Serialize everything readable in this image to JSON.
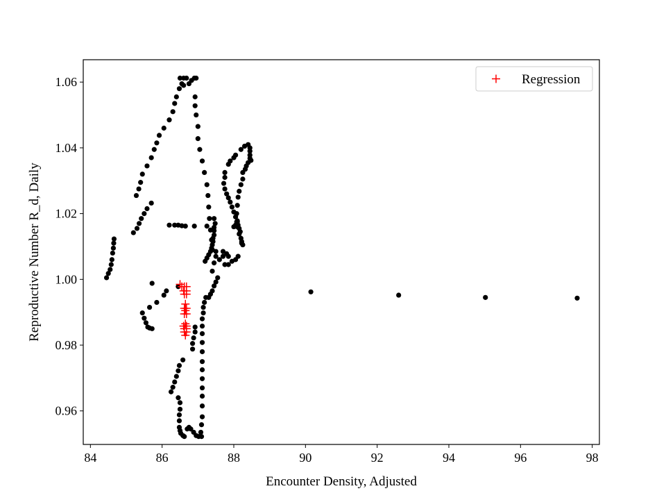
{
  "chart_data": {
    "type": "scatter",
    "xlabel": "Encounter Density, Adjusted",
    "ylabel": "Reproductive Number R_d, Daily",
    "xlim": [
      83.8,
      98.2
    ],
    "ylim": [
      0.9498,
      1.0668
    ],
    "xticks": [
      84,
      86,
      88,
      90,
      92,
      94,
      96,
      98
    ],
    "yticks": [
      0.96,
      0.98,
      1.0,
      1.02,
      1.04,
      1.06
    ],
    "xtick_labels": [
      "84",
      "86",
      "88",
      "90",
      "92",
      "94",
      "96",
      "98"
    ],
    "ytick_labels": [
      "0.96",
      "0.98",
      "1.00",
      "1.02",
      "1.04",
      "1.06"
    ],
    "grid": false,
    "legend_position": "top-right",
    "series": [
      {
        "marker": "dot",
        "color": "#000000",
        "points": [
          [
            84.45,
            1.0005
          ],
          [
            84.5,
            1.0018
          ],
          [
            84.55,
            1.003
          ],
          [
            84.58,
            1.0045
          ],
          [
            84.6,
            1.006
          ],
          [
            84.62,
            1.008
          ],
          [
            84.64,
            1.0095
          ],
          [
            84.65,
            1.011
          ],
          [
            84.66,
            1.0123
          ],
          [
            85.2,
            1.0142
          ],
          [
            85.3,
            1.0155
          ],
          [
            85.36,
            1.017
          ],
          [
            85.42,
            1.0185
          ],
          [
            85.5,
            1.02
          ],
          [
            85.58,
            1.0215
          ],
          [
            85.7,
            1.0232
          ],
          [
            85.28,
            1.0255
          ],
          [
            85.35,
            1.0275
          ],
          [
            85.4,
            1.0295
          ],
          [
            85.45,
            1.032
          ],
          [
            85.58,
            1.0345
          ],
          [
            85.7,
            1.037
          ],
          [
            85.78,
            1.0395
          ],
          [
            85.85,
            1.0415
          ],
          [
            85.92,
            1.0438
          ],
          [
            86.05,
            1.046
          ],
          [
            86.2,
            1.0485
          ],
          [
            86.3,
            1.051
          ],
          [
            86.35,
            1.0535
          ],
          [
            86.4,
            1.0555
          ],
          [
            86.48,
            1.058
          ],
          [
            86.55,
            1.0595
          ],
          [
            86.6,
            1.0612
          ],
          [
            86.5,
            1.0612
          ],
          [
            86.68,
            1.0612
          ],
          [
            86.6,
            1.059
          ],
          [
            86.75,
            1.0595
          ],
          [
            86.82,
            1.0605
          ],
          [
            86.9,
            1.0612
          ],
          [
            86.95,
            1.0612
          ],
          [
            86.92,
            1.0555
          ],
          [
            86.92,
            1.0528
          ],
          [
            86.95,
            1.05
          ],
          [
            87.0,
            1.0465
          ],
          [
            87.0,
            1.0428
          ],
          [
            87.05,
            1.0395
          ],
          [
            87.12,
            1.036
          ],
          [
            87.18,
            1.0325
          ],
          [
            87.25,
            1.0288
          ],
          [
            87.28,
            1.0255
          ],
          [
            87.3,
            1.022
          ],
          [
            87.32,
            1.0185
          ],
          [
            87.35,
            1.015
          ],
          [
            87.38,
            1.012
          ],
          [
            87.4,
            1.009
          ],
          [
            86.2,
            1.0165
          ],
          [
            86.35,
            1.0165
          ],
          [
            86.45,
            1.0165
          ],
          [
            86.55,
            1.0163
          ],
          [
            86.65,
            1.0162
          ],
          [
            86.9,
            1.0162
          ],
          [
            87.25,
            1.0162
          ],
          [
            85.45,
            0.9898
          ],
          [
            85.5,
            0.9882
          ],
          [
            85.55,
            0.9868
          ],
          [
            85.6,
            0.9855
          ],
          [
            85.65,
            0.9852
          ],
          [
            85.72,
            0.985
          ],
          [
            85.85,
            0.993
          ],
          [
            85.65,
            0.9915
          ],
          [
            86.05,
            0.9952
          ],
          [
            86.12,
            0.9965
          ],
          [
            86.45,
            0.9978
          ],
          [
            85.72,
            0.9988
          ],
          [
            86.25,
            0.9658
          ],
          [
            86.3,
            0.9672
          ],
          [
            86.35,
            0.9688
          ],
          [
            86.4,
            0.9705
          ],
          [
            86.45,
            0.9722
          ],
          [
            86.48,
            0.9738
          ],
          [
            86.58,
            0.9755
          ],
          [
            86.45,
            0.964
          ],
          [
            86.5,
            0.9625
          ],
          [
            86.5,
            0.9605
          ],
          [
            86.48,
            0.9588
          ],
          [
            86.48,
            0.957
          ],
          [
            86.48,
            0.955
          ],
          [
            86.5,
            0.954
          ],
          [
            86.52,
            0.9532
          ],
          [
            86.58,
            0.9525
          ],
          [
            86.62,
            0.9522
          ],
          [
            86.7,
            0.9545
          ],
          [
            86.75,
            0.955
          ],
          [
            86.8,
            0.9545
          ],
          [
            86.88,
            0.9535
          ],
          [
            86.95,
            0.9525
          ],
          [
            87.02,
            0.9522
          ],
          [
            87.1,
            0.9522
          ],
          [
            87.08,
            0.9535
          ],
          [
            86.85,
            0.9788
          ],
          [
            86.85,
            0.9805
          ],
          [
            86.88,
            0.9822
          ],
          [
            86.92,
            0.984
          ],
          [
            86.92,
            0.9855
          ],
          [
            87.1,
            0.9558
          ],
          [
            87.12,
            0.9582
          ],
          [
            87.12,
            0.9615
          ],
          [
            87.12,
            0.9645
          ],
          [
            87.12,
            0.967
          ],
          [
            87.12,
            0.9698
          ],
          [
            87.12,
            0.9725
          ],
          [
            87.12,
            0.975
          ],
          [
            87.12,
            0.978
          ],
          [
            87.12,
            0.9808
          ],
          [
            87.12,
            0.9835
          ],
          [
            87.12,
            0.9858
          ],
          [
            87.12,
            0.988
          ],
          [
            87.15,
            0.9898
          ],
          [
            87.15,
            0.9915
          ],
          [
            87.18,
            0.993
          ],
          [
            87.22,
            0.9945
          ],
          [
            87.3,
            0.9945
          ],
          [
            87.35,
            0.9955
          ],
          [
            87.4,
            0.9965
          ],
          [
            87.45,
            0.998
          ],
          [
            87.5,
            0.9992
          ],
          [
            87.55,
            1.0005
          ],
          [
            87.2,
            1.0055
          ],
          [
            87.25,
            1.0065
          ],
          [
            87.3,
            1.0075
          ],
          [
            87.35,
            1.0085
          ],
          [
            87.38,
            1.0095
          ],
          [
            87.4,
            1.0105
          ],
          [
            87.42,
            1.0115
          ],
          [
            87.42,
            1.0125
          ],
          [
            87.45,
            1.0135
          ],
          [
            87.45,
            1.0148
          ],
          [
            87.45,
            1.0158
          ],
          [
            87.48,
            1.017
          ],
          [
            87.45,
            1.0185
          ],
          [
            87.5,
            1.007
          ],
          [
            87.45,
            1.005
          ],
          [
            87.4,
            1.0025
          ],
          [
            87.5,
            1.0085
          ],
          [
            87.7,
            1.0085
          ],
          [
            87.8,
            1.0078
          ],
          [
            87.7,
            1.007
          ],
          [
            87.85,
            1.007
          ],
          [
            87.6,
            1.006
          ],
          [
            87.75,
            1.0045
          ],
          [
            87.85,
            1.0045
          ],
          [
            87.95,
            1.0055
          ],
          [
            88.05,
            1.006
          ],
          [
            88.12,
            1.007
          ],
          [
            87.75,
            1.0325
          ],
          [
            87.75,
            1.031
          ],
          [
            87.72,
            1.0292
          ],
          [
            87.75,
            1.0275
          ],
          [
            87.8,
            1.026
          ],
          [
            87.85,
            1.0248
          ],
          [
            87.9,
            1.0235
          ],
          [
            87.95,
            1.022
          ],
          [
            88.0,
            1.0205
          ],
          [
            88.05,
            1.019
          ],
          [
            88.08,
            1.0175
          ],
          [
            88.1,
            1.016
          ],
          [
            88.1,
            1.0175
          ],
          [
            88.05,
            1.0165
          ],
          [
            88.0,
            1.016
          ],
          [
            88.12,
            1.0165
          ],
          [
            88.15,
            1.0155
          ],
          [
            88.18,
            1.0145
          ],
          [
            87.85,
            1.035
          ],
          [
            87.9,
            1.036
          ],
          [
            88.0,
            1.037
          ],
          [
            88.05,
            1.0378
          ],
          [
            88.2,
            1.0395
          ],
          [
            88.3,
            1.0405
          ],
          [
            88.4,
            1.041
          ],
          [
            88.45,
            1.04
          ],
          [
            88.45,
            1.039
          ],
          [
            88.45,
            1.0378
          ],
          [
            88.45,
            1.0368
          ],
          [
            88.48,
            1.0362
          ],
          [
            88.4,
            1.0355
          ],
          [
            88.35,
            1.0345
          ],
          [
            88.32,
            1.0335
          ],
          [
            88.25,
            1.0325
          ],
          [
            88.25,
            1.0305
          ],
          [
            88.2,
            1.0288
          ],
          [
            88.15,
            1.0268
          ],
          [
            88.12,
            1.025
          ],
          [
            88.1,
            1.0225
          ],
          [
            88.08,
            1.02
          ],
          [
            88.1,
            1.0178
          ],
          [
            88.15,
            1.0138
          ],
          [
            88.2,
            1.0125
          ],
          [
            88.22,
            1.011
          ],
          [
            88.25,
            1.0105
          ],
          [
            88.22,
            1.0115
          ],
          [
            90.15,
            0.9962
          ],
          [
            92.6,
            0.9952
          ],
          [
            95.02,
            0.9945
          ],
          [
            97.58,
            0.9943
          ]
        ]
      },
      {
        "name": "Regression",
        "marker": "plus",
        "color": "#ff0000",
        "points": [
          [
            86.5,
            0.9985
          ],
          [
            86.55,
            0.9978
          ],
          [
            86.62,
            0.9978
          ],
          [
            86.68,
            0.9978
          ],
          [
            86.6,
            0.9965
          ],
          [
            86.68,
            0.9965
          ],
          [
            86.62,
            0.9955
          ],
          [
            86.68,
            0.9955
          ],
          [
            86.65,
            0.9925
          ],
          [
            86.62,
            0.9912
          ],
          [
            86.68,
            0.9912
          ],
          [
            86.65,
            0.9905
          ],
          [
            86.62,
            0.9895
          ],
          [
            86.68,
            0.9895
          ],
          [
            86.65,
            0.9865
          ],
          [
            86.6,
            0.9858
          ],
          [
            86.68,
            0.9858
          ],
          [
            86.62,
            0.985
          ],
          [
            86.68,
            0.985
          ],
          [
            86.62,
            0.984
          ],
          [
            86.68,
            0.984
          ],
          [
            86.65,
            0.983
          ]
        ]
      }
    ]
  }
}
